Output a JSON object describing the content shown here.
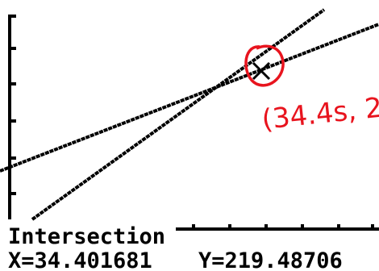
{
  "screen": {
    "label": "Intersection",
    "x_readout": "X=34.401681",
    "y_readout": "Y=219.48706"
  },
  "annotation": {
    "text": "(34.4s, 2"
  }
}
